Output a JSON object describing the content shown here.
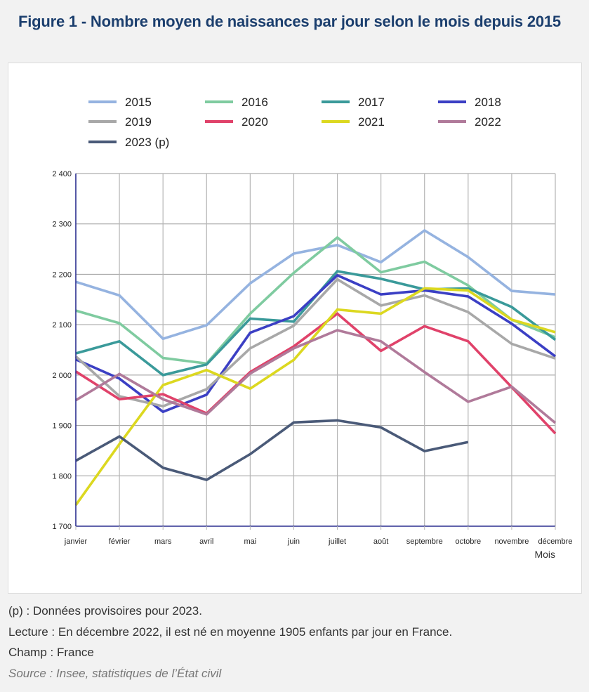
{
  "title": "Figure 1 - Nombre moyen de naissances par jour selon le mois depuis 2015",
  "notes": {
    "provisional": "(p) : Données provisoires pour 2023.",
    "reading": "Lecture : En décembre 2022, il est né en moyenne 1905 enfants par jour en France.",
    "scope": "Champ : France",
    "source": "Source : Insee, statistiques de l’État civil"
  },
  "chart_data": {
    "type": "line",
    "title": "Nombre moyen de naissances par jour selon le mois depuis 2015",
    "xlabel": "Mois",
    "ylabel": "",
    "categories": [
      "janvier",
      "février",
      "mars",
      "avril",
      "mai",
      "juin",
      "juillet",
      "août",
      "septembre",
      "octobre",
      "novembre",
      "décembre"
    ],
    "ylim": [
      1700,
      2400
    ],
    "yticks": [
      1700,
      1800,
      1900,
      2000,
      2100,
      2200,
      2300,
      2400
    ],
    "ytick_labels": [
      "1 700",
      "1 800",
      "1 900",
      "2 000",
      "2 100",
      "2 200",
      "2 300",
      "2 400"
    ],
    "grid": true,
    "legend_position": "top",
    "series": [
      {
        "name": "2015",
        "color": "#95b3e0",
        "values": [
          2185,
          2158,
          2072,
          2099,
          2182,
          2241,
          2258,
          2224,
          2287,
          2234,
          2167,
          2160
        ]
      },
      {
        "name": "2016",
        "color": "#7fcba0",
        "values": [
          2128,
          2103,
          2034,
          2023,
          2122,
          2203,
          2273,
          2204,
          2225,
          2178,
          2110,
          2075
        ]
      },
      {
        "name": "2017",
        "color": "#3a9a9a",
        "values": [
          2043,
          2067,
          2000,
          2021,
          2112,
          2106,
          2206,
          2191,
          2170,
          2172,
          2135,
          2070
        ]
      },
      {
        "name": "2018",
        "color": "#3b3fc4",
        "values": [
          2031,
          1993,
          1927,
          1961,
          2084,
          2117,
          2198,
          2160,
          2168,
          2156,
          2102,
          2037
        ]
      },
      {
        "name": "2019",
        "color": "#a8a8a8",
        "values": [
          2037,
          1958,
          1938,
          1972,
          2053,
          2098,
          2190,
          2138,
          2158,
          2125,
          2062,
          2033
        ]
      },
      {
        "name": "2020",
        "color": "#e0426a",
        "values": [
          2007,
          1952,
          1962,
          1924,
          2006,
          2057,
          2122,
          2048,
          2097,
          2067,
          1976,
          1884
        ]
      },
      {
        "name": "2021",
        "color": "#dcd820",
        "values": [
          1742,
          1863,
          1980,
          2010,
          1973,
          2030,
          2130,
          2122,
          2172,
          2168,
          2110,
          2085
        ]
      },
      {
        "name": "2022",
        "color": "#b07a9a",
        "values": [
          1950,
          2002,
          1952,
          1922,
          2003,
          2053,
          2089,
          2067,
          2006,
          1947,
          1977,
          1905
        ]
      },
      {
        "name": "2023 (p)",
        "color": "#4a5a78",
        "values": [
          1830,
          1878,
          1816,
          1792,
          1843,
          1906,
          1910,
          1896,
          1849,
          1867,
          null,
          null
        ]
      }
    ]
  }
}
